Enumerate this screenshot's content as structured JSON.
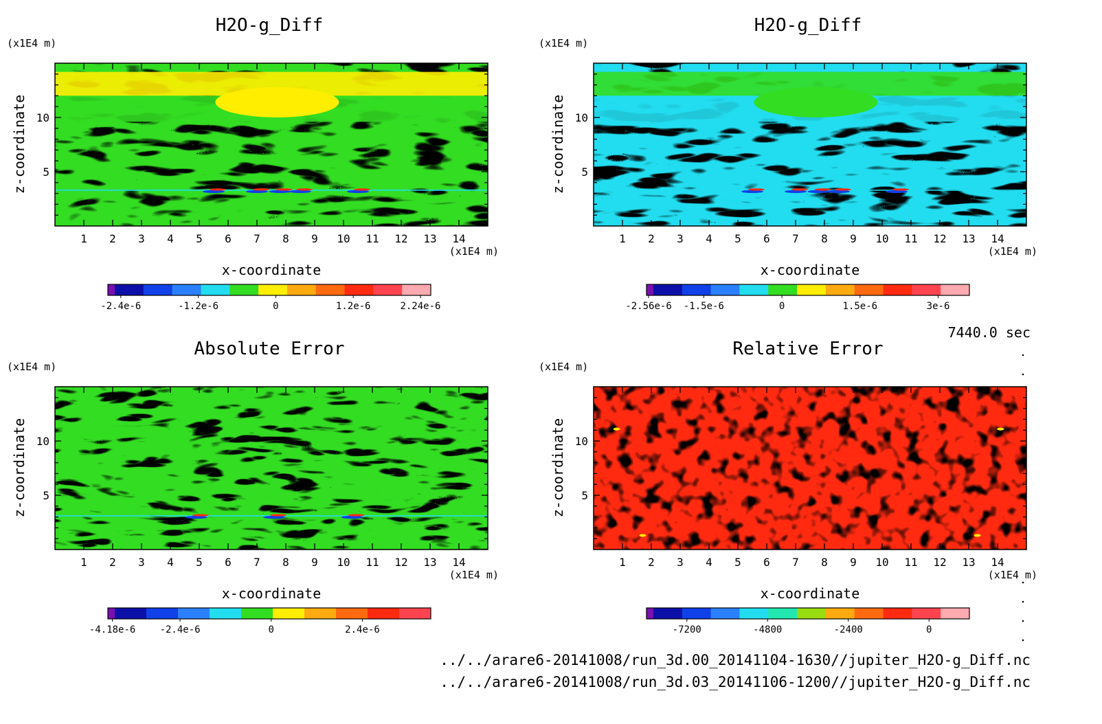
{
  "time_label": "7440.0 sec",
  "files": [
    "../../arare6-20141008/run_3d.00_20141104-1630//jupiter_H2O-g_Diff.nc",
    "../../arare6-20141008/run_3d.03_20141106-1200//jupiter_H2O-g_Diff.nc"
  ],
  "chart_data": [
    {
      "type": "heatmap",
      "title": "H2O-g_Diff",
      "xlabel": "x-coordinate",
      "ylabel": "z-coordinate",
      "x_unit": "(x1E4 m)",
      "y_unit": "(x1E4 m)",
      "xlim": [
        0,
        15
      ],
      "ylim": [
        0,
        15
      ],
      "x_ticks": [
        1,
        2,
        3,
        4,
        5,
        6,
        7,
        8,
        9,
        10,
        11,
        12,
        13,
        14
      ],
      "y_ticks": [
        5,
        10
      ],
      "dominant_colors": [
        "#33dd22",
        "#ffee00"
      ],
      "colorbar": {
        "colors": [
          "#7a10b0",
          "#0c10a8",
          "#1040e8",
          "#2a80ff",
          "#22ddf0",
          "#33dd22",
          "#ffee00",
          "#ffaa10",
          "#ff6a10",
          "#ff2a10",
          "#ff4450",
          "#ffaab0"
        ],
        "tick_labels": [
          "-2.4e-6",
          "-1.2e-6",
          "0",
          "1.2e-6",
          "2.24e-6"
        ],
        "tick_values": [
          -2.4e-06,
          -1.2e-06,
          0,
          1.2e-06,
          2.24e-06
        ],
        "vmin": -2.6e-06,
        "vmax": 2.4e-06
      }
    },
    {
      "type": "heatmap",
      "title": "H2O-g_Diff",
      "xlabel": "x-coordinate",
      "ylabel": "z-coordinate",
      "x_unit": "(x1E4 m)",
      "y_unit": "(x1E4 m)",
      "xlim": [
        0,
        15
      ],
      "ylim": [
        0,
        15
      ],
      "x_ticks": [
        1,
        2,
        3,
        4,
        5,
        6,
        7,
        8,
        9,
        10,
        11,
        12,
        13,
        14
      ],
      "y_ticks": [
        5,
        10
      ],
      "dominant_colors": [
        "#22ddf0",
        "#33dd22"
      ],
      "colorbar": {
        "colors": [
          "#7a10b0",
          "#0c10a8",
          "#1040e8",
          "#2a80ff",
          "#22ddf0",
          "#33dd22",
          "#ffee00",
          "#ffaa10",
          "#ff6a10",
          "#ff2a10",
          "#ff4450",
          "#ffaab0"
        ],
        "tick_labels": [
          "-2.56e-6",
          "-1.5e-6",
          "0",
          "1.5e-6",
          "3e-6"
        ],
        "tick_values": [
          -2.56e-06,
          -1.5e-06,
          0,
          1.5e-06,
          3e-06
        ],
        "vmin": -2.6e-06,
        "vmax": 3.6e-06
      }
    },
    {
      "type": "heatmap",
      "title": "Absolute Error",
      "xlabel": "x-coordinate",
      "ylabel": "z-coordinate",
      "x_unit": "(x1E4 m)",
      "y_unit": "(x1E4 m)",
      "xlim": [
        0,
        15
      ],
      "ylim": [
        0,
        15
      ],
      "x_ticks": [
        1,
        2,
        3,
        4,
        5,
        6,
        7,
        8,
        9,
        10,
        11,
        12,
        13,
        14
      ],
      "y_ticks": [
        5,
        10
      ],
      "dominant_colors": [
        "#33dd22",
        "#ffee00"
      ],
      "colorbar": {
        "colors": [
          "#7a10b0",
          "#0c10a8",
          "#1040e8",
          "#2a80ff",
          "#22ddf0",
          "#33dd22",
          "#ffee00",
          "#ffaa10",
          "#ff6a10",
          "#ff2a10",
          "#ff4450"
        ],
        "tick_labels": [
          "-4.18e-6",
          "-2.4e-6",
          "0",
          "2.4e-6"
        ],
        "tick_values": [
          -4.18e-06,
          -2.4e-06,
          0,
          2.4e-06
        ],
        "vmin": -4.3e-06,
        "vmax": 4.2e-06
      }
    },
    {
      "type": "heatmap",
      "title": "Relative Error",
      "xlabel": "x-coordinate",
      "ylabel": "z-coordinate",
      "x_unit": "(x1E4 m)",
      "y_unit": "(x1E4 m)",
      "xlim": [
        0,
        15
      ],
      "ylim": [
        0,
        15
      ],
      "x_ticks": [
        1,
        2,
        3,
        4,
        5,
        6,
        7,
        8,
        9,
        10,
        11,
        12,
        13,
        14
      ],
      "y_ticks": [
        5,
        10
      ],
      "dominant_colors": [
        "#ff2a10",
        "#ff4450"
      ],
      "colorbar": {
        "colors": [
          "#7a10b0",
          "#0c10a8",
          "#1040e8",
          "#2a80ff",
          "#22ddf0",
          "#22e8b0",
          "#99dd10",
          "#ffaa10",
          "#ff6a10",
          "#ff2a10",
          "#ff4450",
          "#ffaab0"
        ],
        "tick_labels": [
          "-7200",
          "-4800",
          "-2400",
          "0"
        ],
        "tick_values": [
          -7200,
          -4800,
          -2400,
          0
        ],
        "vmin": -8400,
        "vmax": 1200
      }
    }
  ]
}
